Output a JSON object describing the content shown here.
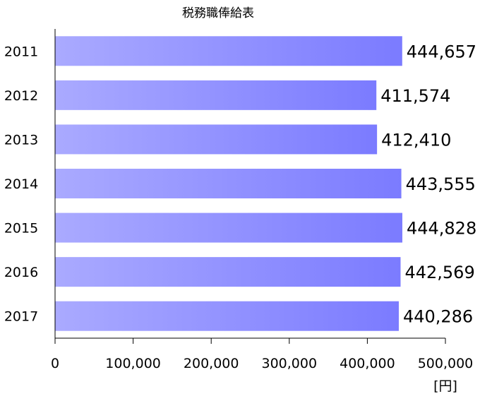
{
  "chart_data": {
    "type": "bar",
    "orientation": "horizontal",
    "title": "税務職俸給表",
    "categories": [
      "2011",
      "2012",
      "2013",
      "2014",
      "2015",
      "2016",
      "2017"
    ],
    "values": [
      444657,
      411574,
      412410,
      443555,
      444828,
      442569,
      440286
    ],
    "data_labels": [
      "444,657",
      "411,574",
      "412,410",
      "443,555",
      "444,828",
      "442,569",
      "440,286"
    ],
    "xlim": [
      0,
      500000
    ],
    "x_ticks": [
      0,
      100000,
      200000,
      300000,
      400000,
      500000
    ],
    "x_tick_labels": [
      "0",
      "100,000",
      "200,000",
      "300,000",
      "400,000",
      "500,000"
    ],
    "unit_label": "[円]",
    "grid": false,
    "bar_gradient": [
      "#aaaaff",
      "#7b7bff"
    ]
  }
}
